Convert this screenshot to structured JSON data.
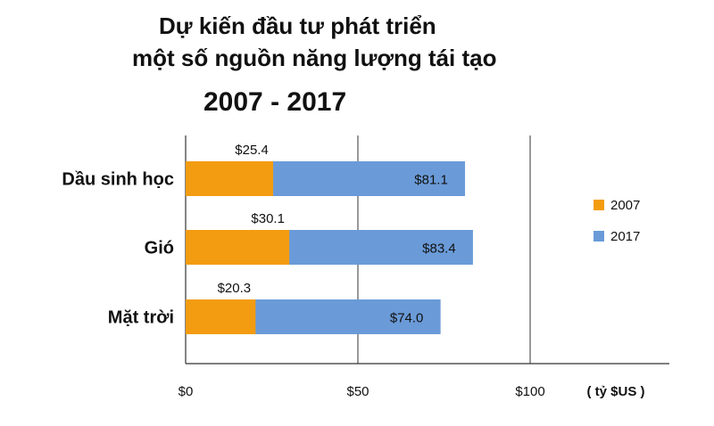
{
  "chart_data": {
    "type": "bar",
    "orientation": "horizontal",
    "title_lines": [
      "Dự kiến đầu tư phát triển",
      "một số nguồn năng lượng tái tạo",
      "2007 - 2017"
    ],
    "categories": [
      "Dầu sinh học",
      "Gió",
      "Mặt trời"
    ],
    "series": [
      {
        "name": "2007",
        "values": [
          25.4,
          30.1,
          20.3
        ],
        "labels": [
          "$25.4",
          "$30.1",
          "$20.3"
        ],
        "color": "#F39C12"
      },
      {
        "name": "2017",
        "values": [
          81.1,
          83.4,
          74.0
        ],
        "labels": [
          "$81.1",
          "$83.4",
          "$74.0"
        ],
        "color": "#6A9BD8"
      }
    ],
    "xticks": [
      "$0",
      "$50",
      "$100"
    ],
    "xtick_values": [
      0,
      50,
      100
    ],
    "xlim": [
      0,
      140
    ],
    "unit_label": "( tỷ $US )",
    "grid": true,
    "legend_position": "right"
  }
}
